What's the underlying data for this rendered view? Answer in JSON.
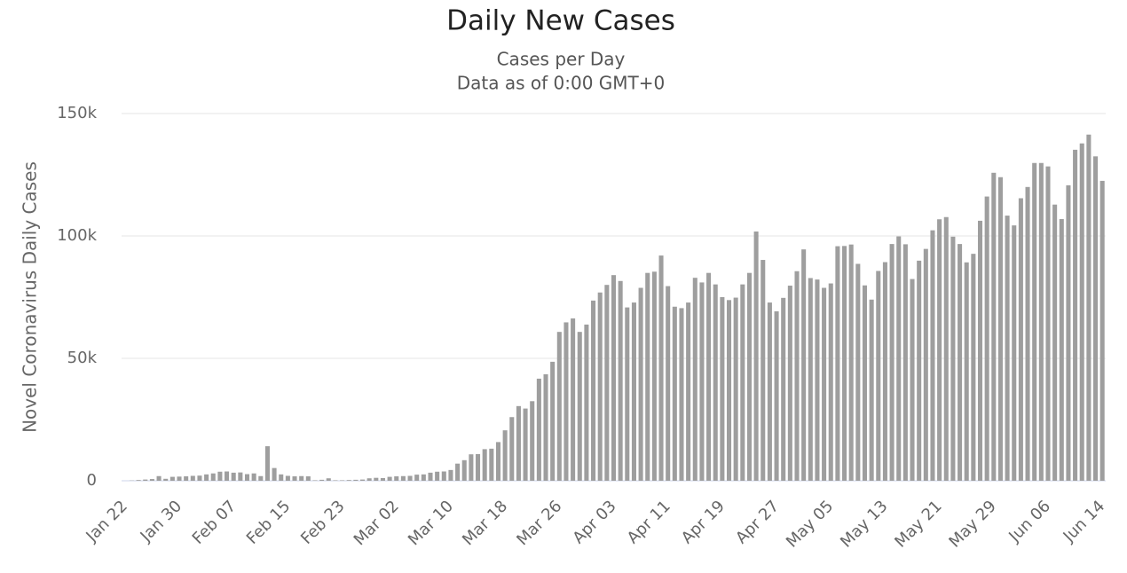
{
  "chart_data": {
    "type": "bar",
    "title": "Daily New Cases",
    "subtitle": [
      "Cases per Day",
      "Data as of 0:00 GMT+0"
    ],
    "y_label": "Novel Coronavirus Daily Cases",
    "color": "#9e9e9e",
    "grid": true,
    "ylim": [
      0,
      150000
    ],
    "yticks": [
      0,
      {
        "value": 50000,
        "label": "50k"
      },
      {
        "value": 100000,
        "label": "100k"
      },
      {
        "value": 150000,
        "label": "150k"
      }
    ],
    "categories": [
      "Jan 22",
      null,
      null,
      null,
      null,
      null,
      null,
      null,
      "Jan 30",
      null,
      null,
      null,
      null,
      null,
      null,
      null,
      "Feb 07",
      null,
      null,
      null,
      null,
      null,
      null,
      null,
      "Feb 15",
      null,
      null,
      null,
      null,
      null,
      null,
      null,
      "Feb 23",
      null,
      null,
      null,
      null,
      null,
      null,
      null,
      "Mar 02",
      null,
      null,
      null,
      null,
      null,
      null,
      null,
      "Mar 10",
      null,
      null,
      null,
      null,
      null,
      null,
      null,
      "Mar 18",
      null,
      null,
      null,
      null,
      null,
      null,
      null,
      "Mar 26",
      null,
      null,
      null,
      null,
      null,
      null,
      null,
      "Apr 03",
      null,
      null,
      null,
      null,
      null,
      null,
      null,
      "Apr 11",
      null,
      null,
      null,
      null,
      null,
      null,
      null,
      "Apr 19",
      null,
      null,
      null,
      null,
      null,
      null,
      null,
      "Apr 27",
      null,
      null,
      null,
      null,
      null,
      null,
      null,
      "May 05",
      null,
      null,
      null,
      null,
      null,
      null,
      null,
      "May 13",
      null,
      null,
      null,
      null,
      null,
      null,
      null,
      "May 21",
      null,
      null,
      null,
      null,
      null,
      null,
      null,
      "May 29",
      null,
      null,
      null,
      null,
      null,
      null,
      null,
      "Jun 06",
      null,
      null,
      null,
      null,
      null,
      null,
      null,
      "Jun 14"
    ],
    "values": [
      0,
      100,
      300,
      500,
      700,
      1900,
      800,
      1600,
      1700,
      1800,
      2000,
      2100,
      2600,
      3000,
      3700,
      3800,
      3300,
      3400,
      2700,
      3000,
      1900,
      14100,
      5200,
      2600,
      2000,
      1800,
      1900,
      1800,
      200,
      400,
      1000,
      200,
      200,
      300,
      400,
      500,
      1000,
      1200,
      1100,
      1600,
      1800,
      1900,
      2000,
      2500,
      2600,
      3300,
      3700,
      3800,
      4400,
      7000,
      8400,
      10800,
      10900,
      12900,
      13100,
      15800,
      20600,
      26000,
      30500,
      29500,
      32500,
      41700,
      43500,
      48600,
      60800,
      64700,
      66300,
      60800,
      63800,
      73600,
      76900,
      80000,
      84000,
      81600,
      70800,
      72800,
      78800,
      84900,
      85400,
      92000,
      79500,
      71100,
      70500,
      72800,
      82900,
      81000,
      84900,
      80200,
      75000,
      73800,
      74800,
      80200,
      84900,
      101800,
      90200,
      72800,
      69200,
      74700,
      79700,
      85600,
      94500,
      82800,
      82200,
      78800,
      80600,
      95800,
      95900,
      96500,
      88600,
      79800,
      74000,
      85700,
      89300,
      96700,
      99800,
      96600,
      82400,
      89900,
      94700,
      102300,
      106800,
      107700,
      99700,
      96700,
      89200,
      92700,
      106200,
      116100,
      125800,
      124000,
      108300,
      104300,
      115400,
      120000,
      129800,
      129800,
      128400,
      112800,
      106900,
      120700,
      135200,
      137800,
      141400,
      132500,
      122500
    ]
  }
}
